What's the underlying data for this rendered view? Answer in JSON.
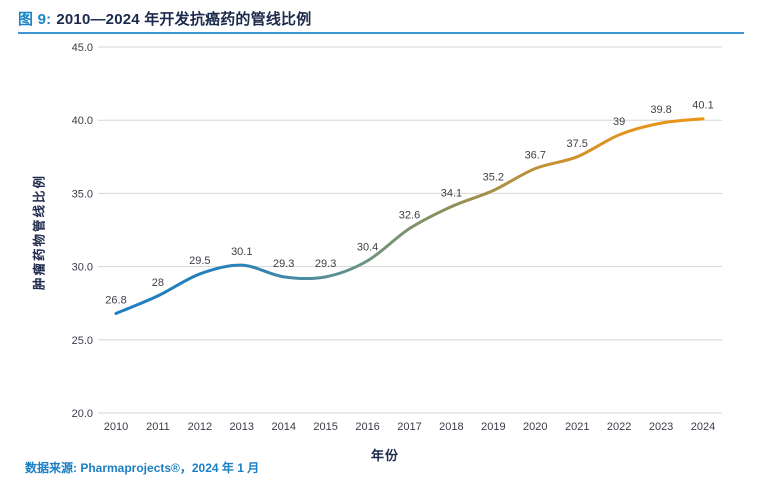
{
  "header": {
    "figure_label": "图 9:",
    "title": "2010—2024 年开发抗癌药的管线比例"
  },
  "chart_data": {
    "type": "line",
    "title": "图 9: 2010—2024 年开发抗癌药的管线比例",
    "x": [
      2010,
      2011,
      2012,
      2013,
      2014,
      2015,
      2016,
      2017,
      2018,
      2019,
      2020,
      2021,
      2022,
      2023,
      2024
    ],
    "values": [
      26.8,
      28,
      29.5,
      30.1,
      29.3,
      29.3,
      30.4,
      32.6,
      34.1,
      35.2,
      36.7,
      37.5,
      39,
      39.8,
      40.1
    ],
    "labels": [
      "26.8",
      "28",
      "29.5",
      "30.1",
      "29.3",
      "29.3",
      "30.4",
      "32.6",
      "34.1",
      "35.2",
      "36.7",
      "37.5",
      "39",
      "39.8",
      "40.1"
    ],
    "xlabel": "年份",
    "ylabel": "肿瘤药物管线比例",
    "ylim": [
      20,
      45
    ],
    "ytick_step": 5,
    "ytick_labels": [
      "20.0",
      "25.0",
      "30.0",
      "35.0",
      "40.0",
      "45.0"
    ],
    "grid": "horizontal",
    "legend": "none",
    "line_gradient": [
      {
        "offset": "0%",
        "color": "#1f7ec4"
      },
      {
        "offset": "21%",
        "color": "#2a80b8"
      },
      {
        "offset": "33%",
        "color": "#4f8b9e"
      },
      {
        "offset": "43%",
        "color": "#6e9480"
      },
      {
        "offset": "57%",
        "color": "#8f9058"
      },
      {
        "offset": "71%",
        "color": "#be9138"
      },
      {
        "offset": "86%",
        "color": "#e2921e"
      },
      {
        "offset": "100%",
        "color": "#ec9418"
      }
    ]
  },
  "footer": {
    "source": "数据来源: Pharmaprojects®，2024 年 1 月"
  },
  "colors": {
    "accent_blue": "#1a85c6",
    "title_navy": "#1b2a4a",
    "rule_blue": "#3e98d3",
    "gridline": "#d6d6d6",
    "tick_text": "#3a3d49",
    "data_label": "#3f4148",
    "source_blue": "#1b7fc4"
  }
}
